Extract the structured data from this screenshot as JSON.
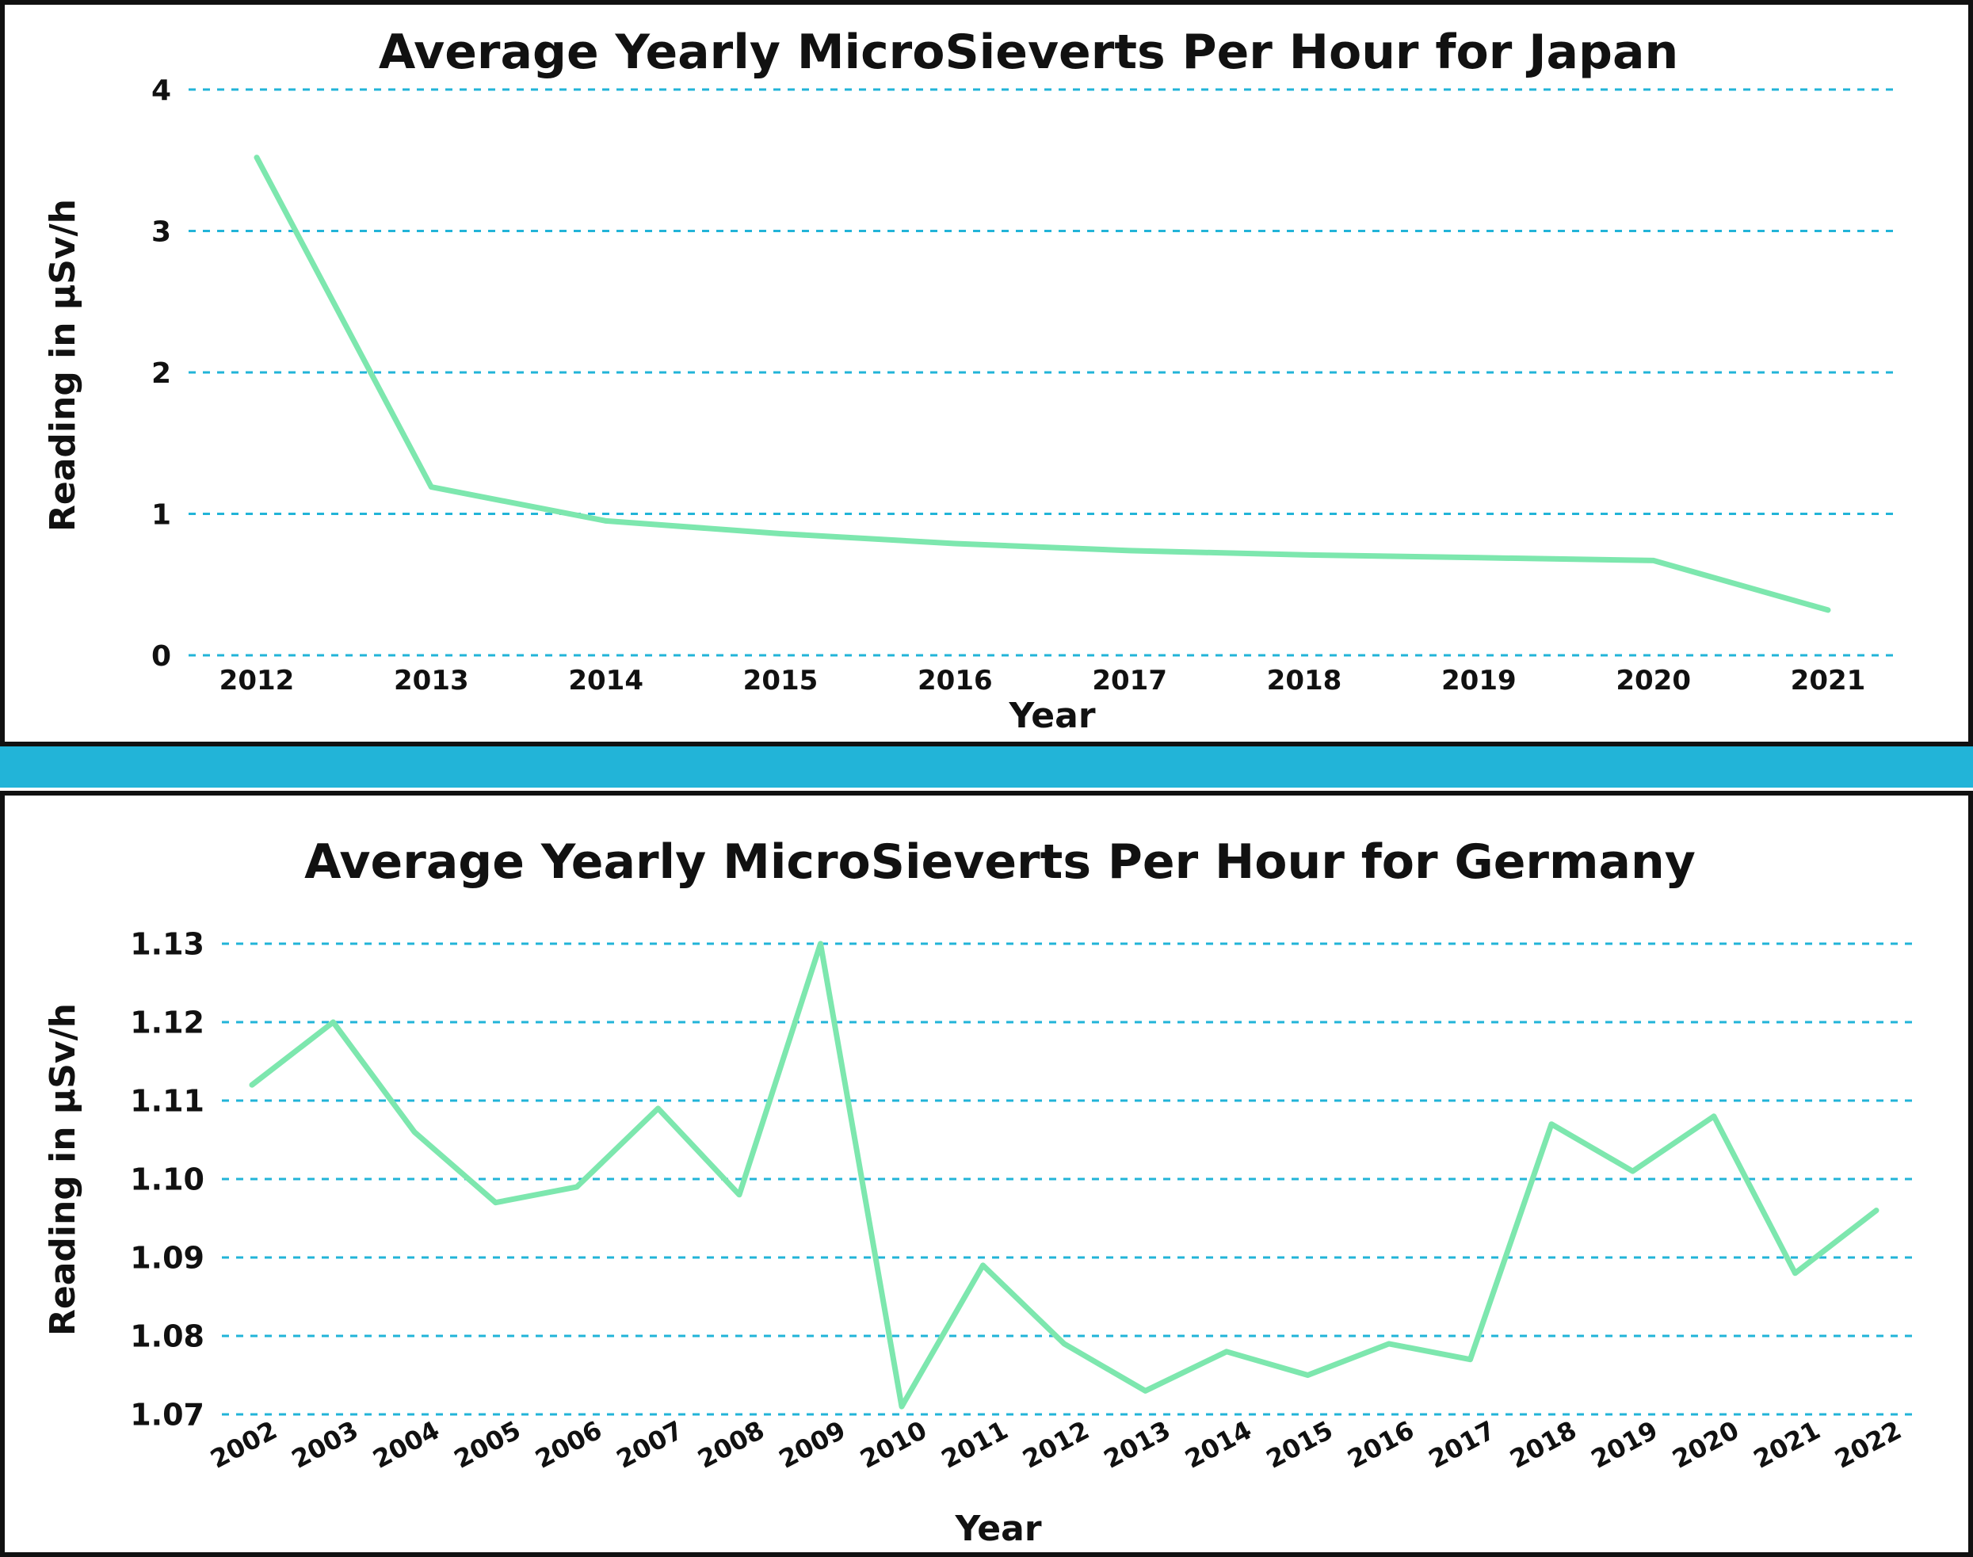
{
  "colors": {
    "line": "#7de7ae",
    "grid": "#22b4d8",
    "separator": "#22b4d8",
    "frame": "#111111"
  },
  "chart_data": [
    {
      "type": "line",
      "title": "Average Yearly MicroSieverts Per Hour for Japan",
      "xlabel": "Year",
      "ylabel": "Reading in µSv/h",
      "categories": [
        "2012",
        "2013",
        "2014",
        "2015",
        "2016",
        "2017",
        "2018",
        "2019",
        "2020",
        "2021"
      ],
      "values": [
        3.52,
        1.19,
        0.95,
        0.86,
        0.79,
        0.74,
        0.71,
        0.69,
        0.67,
        0.32
      ],
      "yticks": [
        "0",
        "1",
        "2",
        "3",
        "4"
      ],
      "ylim": [
        0,
        4
      ],
      "grid": true
    },
    {
      "type": "line",
      "title": "Average Yearly MicroSieverts Per Hour for Germany",
      "xlabel": "Year",
      "ylabel": "Reading in µSv/h",
      "categories": [
        "2002",
        "2003",
        "2004",
        "2005",
        "2006",
        "2007",
        "2008",
        "2009",
        "2010",
        "2011",
        "2012",
        "2013",
        "2014",
        "2015",
        "2016",
        "2017",
        "2018",
        "2019",
        "2020",
        "2021",
        "2022"
      ],
      "values": [
        1.112,
        1.12,
        1.106,
        1.097,
        1.099,
        1.109,
        1.098,
        1.13,
        1.071,
        1.089,
        1.079,
        1.073,
        1.078,
        1.075,
        1.079,
        1.077,
        1.107,
        1.101,
        1.108,
        1.088,
        1.096
      ],
      "yticks": [
        "1.07",
        "1.08",
        "1.09",
        "1.10",
        "1.11",
        "1.12",
        "1.13"
      ],
      "ylim": [
        1.07,
        1.13
      ],
      "grid": true
    }
  ]
}
